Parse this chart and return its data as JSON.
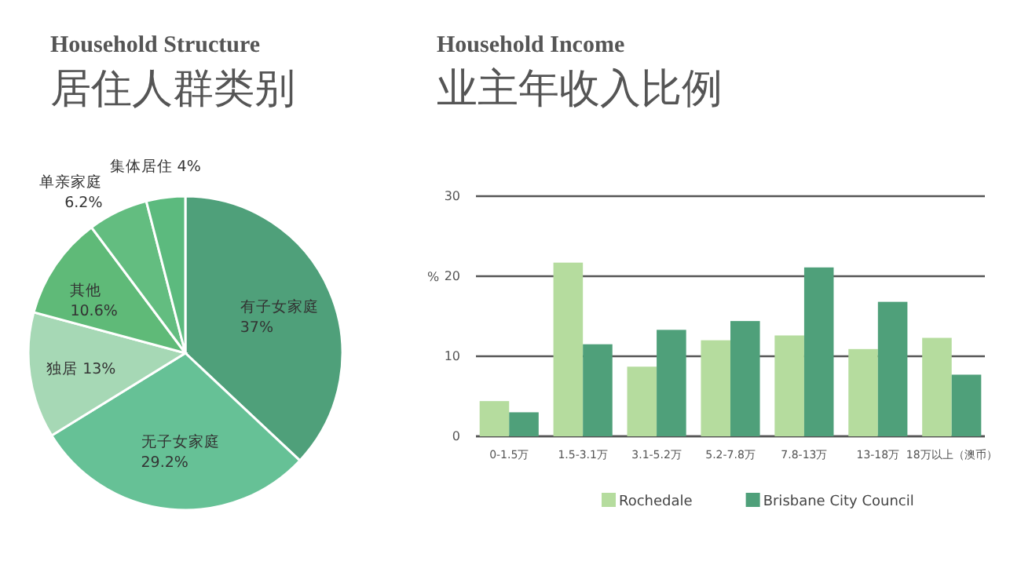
{
  "chart_data": [
    {
      "type": "pie",
      "title": "Household Structure",
      "subtitle": "居住人群类别",
      "categories": [
        "有子女家庭",
        "无子女家庭",
        "独居",
        "其他",
        "单亲家庭",
        "集体居住"
      ],
      "values": [
        37,
        29.2,
        13,
        10.6,
        6.2,
        4
      ],
      "value_labels": [
        "37%",
        "29.2%",
        "13%",
        "10.6%",
        "6.2%",
        "4%"
      ],
      "colors": [
        "#4fa07a",
        "#66c196",
        "#a6d8b5",
        "#5fba78",
        "#63bd80",
        "#5cba7e"
      ]
    },
    {
      "type": "bar",
      "title": "Household Income",
      "subtitle": "业主年收入比例",
      "ylabel": "%",
      "categories": [
        "0-1.5万",
        "1.5-3.1万",
        "3.1-5.2万",
        "5.2-7.8万",
        "7.8-13万",
        "13-18万",
        "18万以上（澳币）"
      ],
      "series": [
        {
          "name": "Rochedale",
          "color": "#b5dc9e",
          "values": [
            4.4,
            21.7,
            8.7,
            12.0,
            12.6,
            10.9,
            12.3
          ]
        },
        {
          "name": "Brisbane City Council",
          "color": "#4fa07a",
          "values": [
            3.0,
            11.5,
            13.3,
            14.4,
            21.1,
            16.8,
            7.7
          ]
        }
      ],
      "ylim": [
        0,
        30
      ],
      "yticks": [
        0,
        10,
        20,
        30
      ],
      "grid": "y",
      "legend": "bottom"
    }
  ]
}
